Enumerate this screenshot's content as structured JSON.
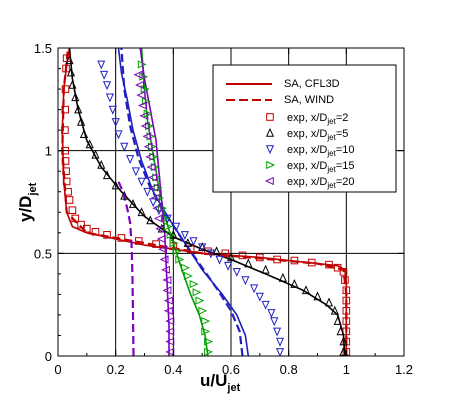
{
  "chart_data": {
    "type": "line",
    "xlabel": "u/U",
    "xlabel_sub": "jet",
    "ylabel": "y/D",
    "ylabel_sub": "jet",
    "xlim": [
      0,
      1.2
    ],
    "ylim": [
      0,
      1.5
    ],
    "xticks": [
      0,
      0.2,
      0.4,
      0.6,
      0.8,
      1,
      1.2
    ],
    "xtick_labels": [
      "0",
      "0.2",
      "0.4",
      "0.6",
      "0.8",
      "1",
      "1.2"
    ],
    "yticks": [
      0,
      0.5,
      1,
      1.5
    ],
    "ytick_labels": [
      "0",
      "0.5",
      "1",
      "1.5"
    ],
    "grid": true,
    "legend_position": "top-right",
    "legend": [
      {
        "label": "SA, CFL3D",
        "kind": "solid-line",
        "color": "#c00000"
      },
      {
        "label": "SA, WIND",
        "kind": "dashed-line",
        "color": "#c00000"
      },
      {
        "label": "exp, x/D",
        "sub": "jet",
        "suffix": "=2",
        "kind": "square",
        "color": "#c00000"
      },
      {
        "label": "exp, x/D",
        "sub": "jet",
        "suffix": "=5",
        "kind": "triangle-up",
        "color": "#000000"
      },
      {
        "label": "exp, x/D",
        "sub": "jet",
        "suffix": "=10",
        "kind": "triangle-down",
        "color": "#2020c0"
      },
      {
        "label": "exp, x/D",
        "sub": "jet",
        "suffix": "=15",
        "kind": "triangle-right",
        "color": "#00a000"
      },
      {
        "label": "exp, x/D",
        "sub": "jet",
        "suffix": "=20",
        "kind": "triangle-left",
        "color": "#8000c0"
      }
    ],
    "model_curves": [
      {
        "station": "2",
        "style": "solid",
        "color": "#c00000",
        "points": [
          [
            1.0,
            0
          ],
          [
            1.0,
            0.2
          ],
          [
            1.0,
            0.35
          ],
          [
            0.995,
            0.42
          ],
          [
            0.97,
            0.44
          ],
          [
            0.9,
            0.45
          ],
          [
            0.7,
            0.48
          ],
          [
            0.5,
            0.5
          ],
          [
            0.3,
            0.54
          ],
          [
            0.1,
            0.6
          ],
          [
            0.05,
            0.63
          ],
          [
            0.03,
            0.7
          ],
          [
            0.02,
            0.85
          ],
          [
            0.015,
            1.1
          ],
          [
            0.02,
            1.3
          ],
          [
            0.03,
            1.42
          ],
          [
            0.04,
            1.5
          ]
        ]
      },
      {
        "station": "5",
        "style": "solid",
        "color": "#000000",
        "points": [
          [
            0.995,
            0
          ],
          [
            0.99,
            0.1
          ],
          [
            0.97,
            0.2
          ],
          [
            0.93,
            0.25
          ],
          [
            0.85,
            0.32
          ],
          [
            0.72,
            0.4
          ],
          [
            0.6,
            0.47
          ],
          [
            0.5,
            0.52
          ],
          [
            0.4,
            0.58
          ],
          [
            0.3,
            0.68
          ],
          [
            0.22,
            0.8
          ],
          [
            0.15,
            0.92
          ],
          [
            0.1,
            1.05
          ],
          [
            0.07,
            1.2
          ],
          [
            0.05,
            1.35
          ],
          [
            0.04,
            1.5
          ]
        ]
      },
      {
        "station": "10",
        "style": "solid",
        "color": "#2020c0",
        "points": [
          [
            0.66,
            0
          ],
          [
            0.65,
            0.1
          ],
          [
            0.62,
            0.2
          ],
          [
            0.57,
            0.3
          ],
          [
            0.5,
            0.42
          ],
          [
            0.44,
            0.55
          ],
          [
            0.38,
            0.68
          ],
          [
            0.33,
            0.8
          ],
          [
            0.29,
            0.95
          ],
          [
            0.26,
            1.1
          ],
          [
            0.24,
            1.25
          ],
          [
            0.22,
            1.38
          ],
          [
            0.21,
            1.5
          ]
        ]
      },
      {
        "station": "15",
        "style": "solid",
        "color": "#00a000",
        "points": [
          [
            0.52,
            0
          ],
          [
            0.51,
            0.1
          ],
          [
            0.49,
            0.2
          ],
          [
            0.46,
            0.3
          ],
          [
            0.43,
            0.42
          ],
          [
            0.4,
            0.55
          ],
          [
            0.37,
            0.68
          ],
          [
            0.35,
            0.82
          ],
          [
            0.33,
            0.98
          ],
          [
            0.31,
            1.15
          ],
          [
            0.3,
            1.3
          ],
          [
            0.29,
            1.5
          ]
        ]
      },
      {
        "station": "20",
        "style": "solid",
        "color": "#8000c0",
        "points": [
          [
            0.385,
            0
          ],
          [
            0.385,
            0.15
          ],
          [
            0.38,
            0.3
          ],
          [
            0.375,
            0.45
          ],
          [
            0.37,
            0.6
          ],
          [
            0.36,
            0.75
          ],
          [
            0.35,
            0.9
          ],
          [
            0.34,
            1.05
          ],
          [
            0.32,
            1.2
          ],
          [
            0.3,
            1.35
          ],
          [
            0.285,
            1.5
          ]
        ]
      },
      {
        "station": "2",
        "style": "dashed",
        "color": "#c00000",
        "points": [
          [
            1.0,
            0
          ],
          [
            1.0,
            0.3
          ],
          [
            0.99,
            0.42
          ],
          [
            0.9,
            0.45
          ],
          [
            0.5,
            0.5
          ],
          [
            0.1,
            0.6
          ],
          [
            0.03,
            0.7
          ],
          [
            0.015,
            1.0
          ],
          [
            0.02,
            1.3
          ],
          [
            0.035,
            1.5
          ]
        ]
      },
      {
        "station": "10",
        "style": "dashed",
        "color": "#2020c0",
        "points": [
          [
            0.64,
            0
          ],
          [
            0.63,
            0.12
          ],
          [
            0.6,
            0.22
          ],
          [
            0.55,
            0.33
          ],
          [
            0.49,
            0.45
          ],
          [
            0.43,
            0.57
          ],
          [
            0.37,
            0.7
          ],
          [
            0.32,
            0.82
          ],
          [
            0.28,
            0.96
          ],
          [
            0.25,
            1.12
          ],
          [
            0.23,
            1.3
          ],
          [
            0.22,
            1.5
          ]
        ]
      },
      {
        "station": "20",
        "style": "dashed",
        "color": "#8000c0",
        "points": [
          [
            0.262,
            0
          ],
          [
            0.26,
            0.2
          ],
          [
            0.258,
            0.4
          ],
          [
            0.255,
            0.55
          ],
          [
            0.25,
            0.65
          ],
          [
            0.24,
            0.72
          ],
          [
            0.225,
            0.8
          ],
          [
            0.21,
            0.85
          ]
        ]
      }
    ],
    "experiment_series": [
      {
        "station": "2",
        "marker": "square",
        "color": "#c00000",
        "points": [
          [
            1.0,
            0.02
          ],
          [
            1.0,
            0.07
          ],
          [
            1.0,
            0.12
          ],
          [
            1.0,
            0.17
          ],
          [
            1.0,
            0.22
          ],
          [
            1.0,
            0.27
          ],
          [
            1.0,
            0.32
          ],
          [
            0.995,
            0.37
          ],
          [
            0.99,
            0.41
          ],
          [
            0.97,
            0.43
          ],
          [
            0.94,
            0.445
          ],
          [
            0.88,
            0.455
          ],
          [
            0.82,
            0.465
          ],
          [
            0.76,
            0.47
          ],
          [
            0.7,
            0.48
          ],
          [
            0.64,
            0.49
          ],
          [
            0.58,
            0.5
          ],
          [
            0.52,
            0.51
          ],
          [
            0.46,
            0.52
          ],
          [
            0.4,
            0.535
          ],
          [
            0.34,
            0.545
          ],
          [
            0.28,
            0.56
          ],
          [
            0.22,
            0.575
          ],
          [
            0.17,
            0.59
          ],
          [
            0.13,
            0.605
          ],
          [
            0.1,
            0.62
          ],
          [
            0.08,
            0.64
          ],
          [
            0.06,
            0.67
          ],
          [
            0.05,
            0.71
          ],
          [
            0.04,
            0.76
          ],
          [
            0.035,
            0.8
          ],
          [
            0.03,
            0.85
          ],
          [
            0.028,
            0.9
          ],
          [
            0.026,
            0.95
          ],
          [
            0.025,
            1.0
          ],
          [
            0.024,
            1.1
          ],
          [
            0.025,
            1.2
          ],
          [
            0.026,
            1.3
          ],
          [
            0.028,
            1.4
          ],
          [
            0.03,
            1.45
          ]
        ]
      },
      {
        "station": "5",
        "marker": "triangle-up",
        "color": "#000000",
        "points": [
          [
            0.99,
            0.02
          ],
          [
            0.99,
            0.07
          ],
          [
            0.98,
            0.12
          ],
          [
            0.97,
            0.17
          ],
          [
            0.96,
            0.22
          ],
          [
            0.94,
            0.26
          ],
          [
            0.9,
            0.29
          ],
          [
            0.86,
            0.32
          ],
          [
            0.82,
            0.35
          ],
          [
            0.78,
            0.38
          ],
          [
            0.72,
            0.42
          ],
          [
            0.66,
            0.45
          ],
          [
            0.6,
            0.48
          ],
          [
            0.55,
            0.51
          ],
          [
            0.5,
            0.53
          ],
          [
            0.45,
            0.55
          ],
          [
            0.4,
            0.59
          ],
          [
            0.36,
            0.62
          ],
          [
            0.32,
            0.66
          ],
          [
            0.29,
            0.7
          ],
          [
            0.26,
            0.74
          ],
          [
            0.23,
            0.78
          ],
          [
            0.2,
            0.83
          ],
          [
            0.17,
            0.88
          ],
          [
            0.15,
            0.93
          ],
          [
            0.13,
            0.98
          ],
          [
            0.11,
            1.03
          ],
          [
            0.09,
            1.08
          ],
          [
            0.08,
            1.14
          ],
          [
            0.07,
            1.2
          ],
          [
            0.06,
            1.26
          ],
          [
            0.05,
            1.32
          ],
          [
            0.045,
            1.38
          ],
          [
            0.04,
            1.44
          ]
        ]
      },
      {
        "station": "10",
        "marker": "triangle-down",
        "color": "#2020c0",
        "points": [
          [
            0.77,
            0.02
          ],
          [
            0.77,
            0.07
          ],
          [
            0.76,
            0.12
          ],
          [
            0.75,
            0.17
          ],
          [
            0.74,
            0.21
          ],
          [
            0.72,
            0.25
          ],
          [
            0.7,
            0.29
          ],
          [
            0.68,
            0.33
          ],
          [
            0.65,
            0.37
          ],
          [
            0.62,
            0.41
          ],
          [
            0.59,
            0.44
          ],
          [
            0.56,
            0.47
          ],
          [
            0.53,
            0.5
          ],
          [
            0.5,
            0.53
          ],
          [
            0.47,
            0.56
          ],
          [
            0.44,
            0.59
          ],
          [
            0.41,
            0.63
          ],
          [
            0.38,
            0.67
          ],
          [
            0.35,
            0.71
          ],
          [
            0.33,
            0.75
          ],
          [
            0.31,
            0.8
          ],
          [
            0.29,
            0.85
          ],
          [
            0.27,
            0.9
          ],
          [
            0.25,
            0.96
          ],
          [
            0.23,
            1.02
          ],
          [
            0.21,
            1.08
          ],
          [
            0.2,
            1.14
          ],
          [
            0.19,
            1.2
          ],
          [
            0.18,
            1.26
          ],
          [
            0.17,
            1.32
          ],
          [
            0.16,
            1.37
          ],
          [
            0.15,
            1.42
          ]
        ]
      },
      {
        "station": "15",
        "marker": "triangle-right",
        "color": "#00a000",
        "points": [
          [
            0.52,
            0.02
          ],
          [
            0.52,
            0.07
          ],
          [
            0.51,
            0.12
          ],
          [
            0.51,
            0.17
          ],
          [
            0.5,
            0.22
          ],
          [
            0.49,
            0.27
          ],
          [
            0.48,
            0.31
          ],
          [
            0.47,
            0.35
          ],
          [
            0.45,
            0.39
          ],
          [
            0.44,
            0.43
          ],
          [
            0.42,
            0.47
          ],
          [
            0.41,
            0.51
          ],
          [
            0.4,
            0.55
          ],
          [
            0.39,
            0.59
          ],
          [
            0.38,
            0.63
          ],
          [
            0.37,
            0.67
          ],
          [
            0.36,
            0.72
          ],
          [
            0.35,
            0.77
          ],
          [
            0.345,
            0.82
          ],
          [
            0.34,
            0.87
          ],
          [
            0.335,
            0.92
          ],
          [
            0.33,
            0.97
          ],
          [
            0.325,
            1.02
          ],
          [
            0.32,
            1.07
          ],
          [
            0.315,
            1.12
          ],
          [
            0.31,
            1.18
          ],
          [
            0.305,
            1.24
          ],
          [
            0.3,
            1.3
          ],
          [
            0.295,
            1.36
          ],
          [
            0.29,
            1.42
          ]
        ]
      },
      {
        "station": "20",
        "marker": "triangle-left",
        "color": "#8000c0",
        "points": [
          [
            0.39,
            0.02
          ],
          [
            0.39,
            0.07
          ],
          [
            0.39,
            0.12
          ],
          [
            0.39,
            0.17
          ],
          [
            0.385,
            0.22
          ],
          [
            0.385,
            0.27
          ],
          [
            0.38,
            0.32
          ],
          [
            0.38,
            0.37
          ],
          [
            0.375,
            0.42
          ],
          [
            0.37,
            0.47
          ],
          [
            0.365,
            0.52
          ],
          [
            0.36,
            0.57
          ],
          [
            0.355,
            0.62
          ],
          [
            0.35,
            0.67
          ],
          [
            0.345,
            0.72
          ],
          [
            0.34,
            0.77
          ],
          [
            0.335,
            0.82
          ],
          [
            0.33,
            0.87
          ],
          [
            0.325,
            0.92
          ],
          [
            0.32,
            0.97
          ],
          [
            0.315,
            1.02
          ],
          [
            0.31,
            1.07
          ],
          [
            0.305,
            1.12
          ],
          [
            0.3,
            1.17
          ],
          [
            0.295,
            1.22
          ],
          [
            0.29,
            1.27
          ],
          [
            0.285,
            1.32
          ],
          [
            0.28,
            1.37
          ]
        ]
      }
    ]
  }
}
